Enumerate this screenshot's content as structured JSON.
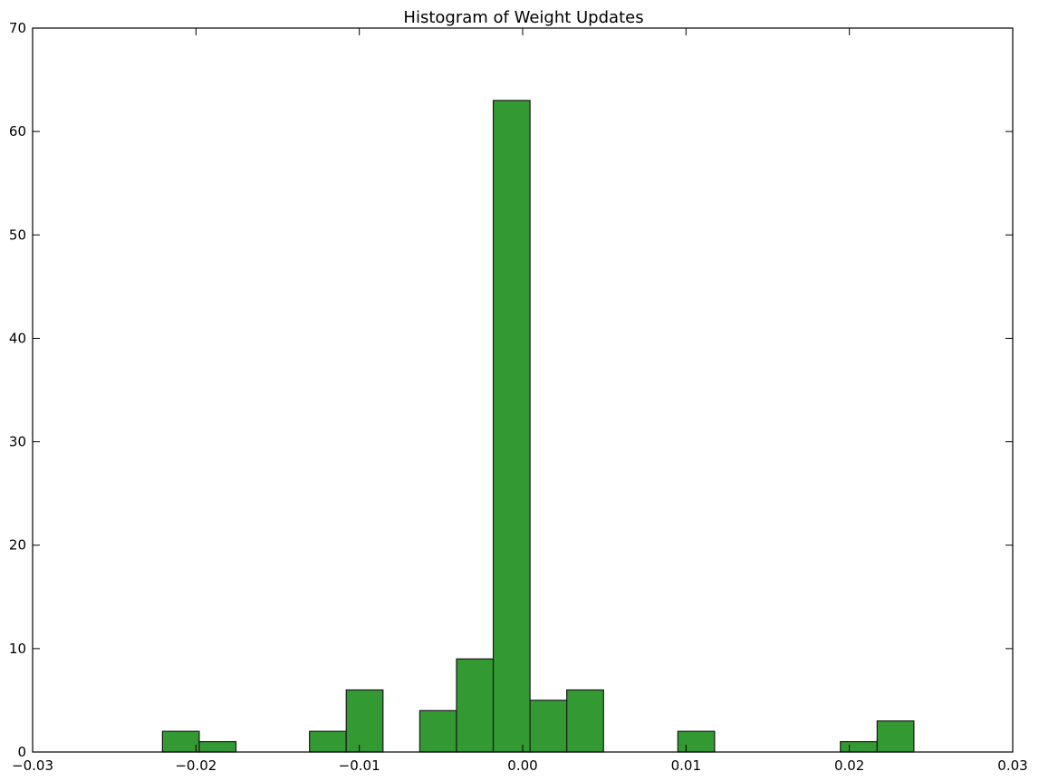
{
  "chart_data": {
    "type": "bar",
    "title": "Histogram of Weight Updates",
    "xlabel": "",
    "ylabel": "",
    "xlim": [
      -0.03,
      0.03
    ],
    "ylim": [
      0,
      70
    ],
    "grid": false,
    "bar_color": "#339933",
    "edge_color": "#1a1a1a",
    "bin_width": 0.00225,
    "bins": [
      {
        "left": -0.02205,
        "count": 2
      },
      {
        "left": -0.0198,
        "count": 1
      },
      {
        "left": -0.01305,
        "count": 2
      },
      {
        "left": -0.0108,
        "count": 6
      },
      {
        "left": -0.0063,
        "count": 4
      },
      {
        "left": -0.00405,
        "count": 9
      },
      {
        "left": -0.0018,
        "count": 63
      },
      {
        "left": 0.00045,
        "count": 5
      },
      {
        "left": 0.0027,
        "count": 6
      },
      {
        "left": 0.0095,
        "count": 2
      },
      {
        "left": 0.01945,
        "count": 1
      },
      {
        "left": 0.0217,
        "count": 3
      }
    ],
    "x_ticks": [
      {
        "value": -0.03,
        "label": "−0.03"
      },
      {
        "value": -0.02,
        "label": "−0.02"
      },
      {
        "value": -0.01,
        "label": "−0.01"
      },
      {
        "value": 0.0,
        "label": "0.00"
      },
      {
        "value": 0.01,
        "label": "0.01"
      },
      {
        "value": 0.02,
        "label": "0.02"
      },
      {
        "value": 0.03,
        "label": "0.03"
      }
    ],
    "y_ticks": [
      {
        "value": 0,
        "label": "0"
      },
      {
        "value": 10,
        "label": "10"
      },
      {
        "value": 20,
        "label": "20"
      },
      {
        "value": 30,
        "label": "30"
      },
      {
        "value": 40,
        "label": "40"
      },
      {
        "value": 50,
        "label": "50"
      },
      {
        "value": 60,
        "label": "60"
      },
      {
        "value": 70,
        "label": "70"
      }
    ]
  }
}
